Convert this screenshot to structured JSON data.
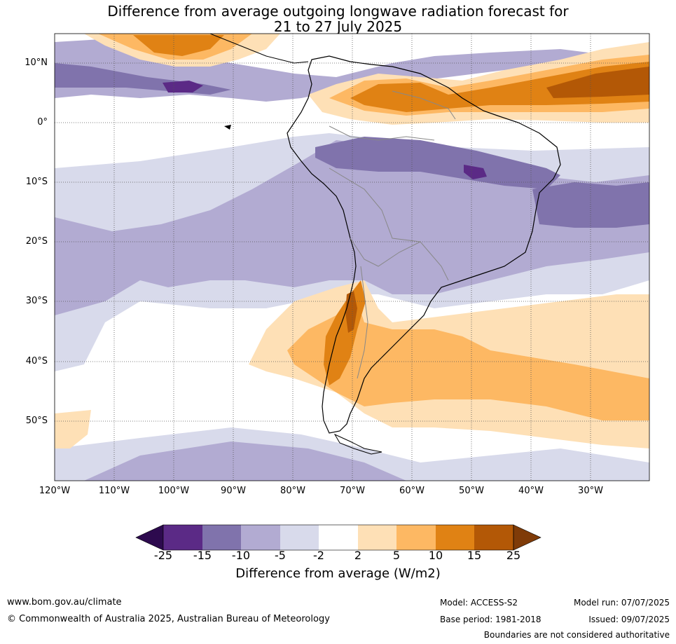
{
  "title": {
    "line1": "Difference from average outgoing longwave radiation forecast for",
    "line2": "21 to 27 July 2025"
  },
  "map": {
    "lat_labels": [
      "10°N",
      "0°",
      "10°S",
      "20°S",
      "30°S",
      "40°S",
      "50°S"
    ],
    "lon_labels": [
      "120°W",
      "110°W",
      "100°W",
      "90°W",
      "80°W",
      "70°W",
      "60°W",
      "50°W",
      "40°W",
      "30°W"
    ],
    "colors": {
      "le_m25": "#2d0a4e",
      "m25_m15": "#5b2a86",
      "m15_m10": "#8073ac",
      "m10_m5": "#b2abd2",
      "m5_m2": "#d8daeb",
      "m2_2": "#ffffff",
      "p2_5": "#fee0b6",
      "p5_10": "#fdb863",
      "p10_15": "#e08214",
      "p15_25": "#b35806",
      "ge_25": "#7f3b08"
    }
  },
  "colorbar": {
    "ticks": [
      "-25",
      "-15",
      "-10",
      "-5",
      "-2",
      "2",
      "5",
      "10",
      "15",
      "25"
    ],
    "label": "Difference from average (W/m2)"
  },
  "footer": {
    "url": "www.bom.gov.au/climate",
    "copyright": "© Commonwealth of Australia 2025, Australian Bureau of Meteorology",
    "model": "Model: ACCESS-S2",
    "base_period": "Base period: 1981-2018",
    "model_run": "Model run: 07/07/2025",
    "issued": "Issued: 09/07/2025",
    "disclaimer": "Boundaries are not considered authoritative"
  }
}
